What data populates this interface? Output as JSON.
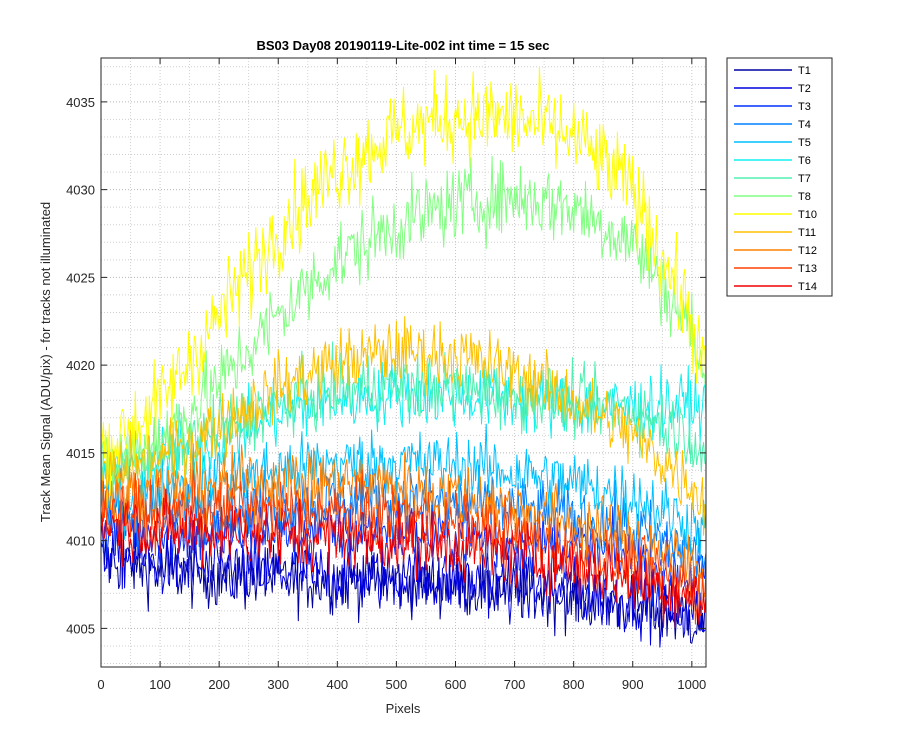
{
  "chart_data": {
    "type": "line",
    "title": "BS03 Day08 20190119-Lite-002 int time = 15 sec",
    "xlabel": "Pixels",
    "ylabel": "Track Mean Signal (ADU/pix) - for tracks not illuminated",
    "xlim": [
      0,
      1024
    ],
    "ylim": [
      4002.8,
      4037.5
    ],
    "xticks": [
      0,
      100,
      200,
      300,
      400,
      500,
      600,
      700,
      800,
      900,
      1000
    ],
    "yticks": [
      4005,
      4010,
      4015,
      4020,
      4025,
      4030,
      4035
    ],
    "grid": "major and minor, dotted",
    "legend_position": "outside-top-right",
    "series": [
      {
        "name": "T1",
        "color": "#00009f",
        "x": [
          0,
          100,
          200,
          300,
          400,
          500,
          600,
          700,
          800,
          900,
          1000,
          1024
        ],
        "y": [
          4009.0,
          4008.3,
          4008.0,
          4007.8,
          4007.8,
          4007.7,
          4007.5,
          4007.2,
          4006.8,
          4006.3,
          4005.6,
          4005.4
        ]
      },
      {
        "name": "T2",
        "color": "#0000df",
        "x": [
          0,
          100,
          200,
          300,
          400,
          500,
          600,
          700,
          800,
          900,
          1000,
          1024
        ],
        "y": [
          4009.4,
          4008.7,
          4008.3,
          4008.1,
          4008.0,
          4007.9,
          4007.7,
          4007.4,
          4007.0,
          4006.6,
          4005.9,
          4005.7
        ]
      },
      {
        "name": "T3",
        "color": "#0030ff",
        "x": [
          0,
          100,
          200,
          300,
          400,
          500,
          600,
          700,
          800,
          900,
          1000,
          1024
        ],
        "y": [
          4010.8,
          4010.5,
          4010.5,
          4010.6,
          4010.6,
          4010.5,
          4010.3,
          4010.0,
          4009.6,
          4009.0,
          4008.0,
          4007.8
        ]
      },
      {
        "name": "T4",
        "color": "#0080ff",
        "x": [
          0,
          100,
          200,
          300,
          400,
          500,
          600,
          700,
          800,
          900,
          1000,
          1024
        ],
        "y": [
          4011.5,
          4011.5,
          4011.8,
          4012.1,
          4012.3,
          4012.3,
          4012.1,
          4011.8,
          4011.3,
          4010.6,
          4009.4,
          4009.1
        ]
      },
      {
        "name": "T5",
        "color": "#00c0ff",
        "x": [
          0,
          100,
          200,
          300,
          400,
          500,
          600,
          700,
          800,
          900,
          1000,
          1024
        ],
        "y": [
          4012.5,
          4012.8,
          4013.4,
          4014.0,
          4014.4,
          4014.5,
          4014.3,
          4013.9,
          4013.3,
          4012.5,
          4011.0,
          4010.5
        ]
      },
      {
        "name": "T6",
        "color": "#10f0f0",
        "x": [
          0,
          100,
          200,
          300,
          400,
          500,
          600,
          700,
          800,
          900,
          1000,
          1024
        ],
        "y": [
          4013.8,
          4014.5,
          4015.8,
          4017.2,
          4018.0,
          4018.4,
          4018.3,
          4018.0,
          4017.7,
          4017.6,
          4017.8,
          4017.4
        ]
      },
      {
        "name": "T7",
        "color": "#50f0b0",
        "x": [
          0,
          100,
          200,
          300,
          400,
          500,
          600,
          700,
          800,
          900,
          1000,
          1024
        ],
        "y": [
          4014.2,
          4015.0,
          4016.4,
          4017.8,
          4018.6,
          4018.9,
          4018.7,
          4018.3,
          4017.9,
          4017.4,
          4016.0,
          4014.6
        ]
      },
      {
        "name": "T8",
        "color": "#80ff80",
        "x": [
          0,
          100,
          200,
          300,
          400,
          500,
          600,
          700,
          800,
          900,
          1000,
          1024
        ],
        "y": [
          4014.0,
          4015.8,
          4019.0,
          4022.8,
          4026.0,
          4028.0,
          4029.2,
          4029.6,
          4029.0,
          4027.0,
          4022.0,
          4018.5
        ]
      },
      {
        "name": "T10",
        "color": "#ffff00",
        "x": [
          0,
          100,
          200,
          300,
          400,
          500,
          600,
          700,
          800,
          900,
          1000,
          1024
        ],
        "y": [
          4015.0,
          4017.8,
          4022.8,
          4027.8,
          4031.2,
          4033.3,
          4034.2,
          4034.1,
          4033.0,
          4030.0,
          4022.5,
          4019.0
        ]
      },
      {
        "name": "T11",
        "color": "#ffc000",
        "x": [
          0,
          100,
          200,
          300,
          400,
          500,
          600,
          700,
          800,
          900,
          1000,
          1024
        ],
        "y": [
          4013.6,
          4014.6,
          4016.6,
          4018.7,
          4020.2,
          4020.8,
          4020.6,
          4019.6,
          4018.0,
          4016.0,
          4013.2,
          4012.0
        ]
      },
      {
        "name": "T12",
        "color": "#ff8000",
        "x": [
          0,
          100,
          200,
          300,
          400,
          500,
          600,
          700,
          800,
          900,
          1000,
          1024
        ],
        "y": [
          4012.6,
          4012.8,
          4013.1,
          4013.3,
          4013.3,
          4013.1,
          4012.6,
          4011.9,
          4011.0,
          4010.0,
          4008.6,
          4008.2
        ]
      },
      {
        "name": "T13",
        "color": "#ff4000",
        "x": [
          0,
          100,
          200,
          300,
          400,
          500,
          600,
          700,
          800,
          900,
          1000,
          1024
        ],
        "y": [
          4011.6,
          4011.6,
          4011.7,
          4011.7,
          4011.6,
          4011.4,
          4011.0,
          4010.4,
          4009.6,
          4008.6,
          4007.4,
          4007.0
        ]
      },
      {
        "name": "T14",
        "color": "#f00000",
        "x": [
          0,
          100,
          200,
          300,
          400,
          500,
          600,
          700,
          800,
          900,
          1000,
          1024
        ],
        "y": [
          4011.0,
          4010.6,
          4010.4,
          4010.3,
          4010.2,
          4010.0,
          4009.7,
          4009.2,
          4008.6,
          4007.8,
          4006.8,
          4006.5
        ]
      }
    ]
  }
}
